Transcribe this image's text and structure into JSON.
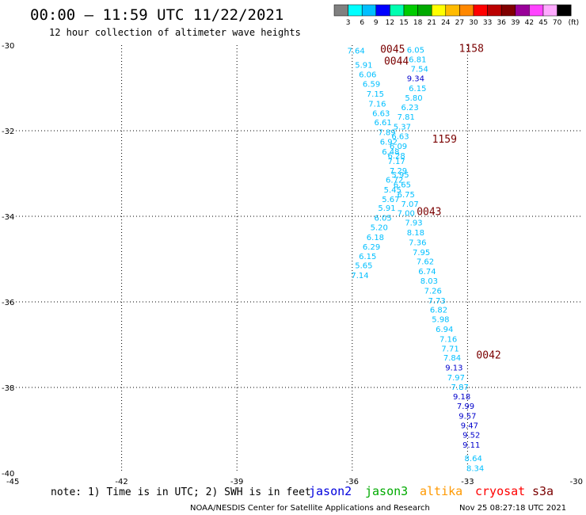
{
  "header": {
    "title": "00:00 – 11:59 UTC 11/22/2021",
    "subtitle": "12 hour collection of altimeter wave heights"
  },
  "colorbar": {
    "labels": [
      "3",
      "6",
      "9",
      "12",
      "15",
      "18",
      "21",
      "24",
      "27",
      "30",
      "33",
      "36",
      "39",
      "42",
      "45",
      "70"
    ],
    "unit": "(ft)",
    "colors": [
      "#808080",
      "#00ffff",
      "#00bfff",
      "#0000ff",
      "#00ffb0",
      "#00cc00",
      "#00aa00",
      "#ffff00",
      "#ffbb00",
      "#ff8800",
      "#ff0000",
      "#bb0000",
      "#800000",
      "#990099",
      "#ff44ff",
      "#ffaaff",
      "#000000"
    ]
  },
  "note": "note: 1) Time is in UTC; 2) SWH is in feet",
  "legend": [
    {
      "name": "jason2",
      "color": "#0000dd"
    },
    {
      "name": "jason3",
      "color": "#00aa00"
    },
    {
      "name": "altika",
      "color": "#ff9900"
    },
    {
      "name": "cryosat",
      "color": "#ff0000"
    },
    {
      "name": "s3a",
      "color": "#7a0000"
    }
  ],
  "credit": "NOAA/NESDIS Center for Satellite Applications and Research",
  "timestamp": "Nov 25 08:27:18 UTC 2021",
  "chart_data": {
    "type": "scatter",
    "xlim": [
      -45,
      -30
    ],
    "ylim": [
      -40,
      -30
    ],
    "xticks": [
      -45,
      -42,
      -39,
      -36,
      -33,
      -30
    ],
    "yticks": [
      -30,
      -32,
      -34,
      -36,
      -38,
      -40
    ],
    "xtick_labels": [
      "-45",
      "-42",
      "-39",
      "-36",
      "-33",
      "-30"
    ],
    "ytick_labels": [
      "-30",
      "-32",
      "-34",
      "-36",
      "-38",
      "-40"
    ],
    "grid": true,
    "series": [
      {
        "color": "#00bfff",
        "points": [
          {
            "x": -35.9,
            "y": -30.12,
            "label": "7.64"
          },
          {
            "x": -35.7,
            "y": -30.45,
            "label": "5.91"
          },
          {
            "x": -35.6,
            "y": -30.68,
            "label": "6.06"
          },
          {
            "x": -35.5,
            "y": -30.9,
            "label": "6.59"
          },
          {
            "x": -35.4,
            "y": -31.13,
            "label": "7.15"
          },
          {
            "x": -35.35,
            "y": -31.36,
            "label": "7.16"
          },
          {
            "x": -35.25,
            "y": -31.58,
            "label": "6.63"
          },
          {
            "x": -35.2,
            "y": -31.8,
            "label": "6.61"
          },
          {
            "x": -35.1,
            "y": -32.03,
            "label": "7.89"
          },
          {
            "x": -35.05,
            "y": -32.25,
            "label": "6.92"
          },
          {
            "x": -35.0,
            "y": -32.48,
            "label": "6.48"
          },
          {
            "x": -34.85,
            "y": -32.7,
            "label": "7.17"
          },
          {
            "x": -34.8,
            "y": -32.93,
            "label": "7.29"
          },
          {
            "x": -34.9,
            "y": -33.14,
            "label": "6.72"
          },
          {
            "x": -34.95,
            "y": -33.37,
            "label": "5.45"
          },
          {
            "x": -35.0,
            "y": -33.59,
            "label": "5.67"
          },
          {
            "x": -35.1,
            "y": -33.8,
            "label": "5.91"
          },
          {
            "x": -35.2,
            "y": -34.03,
            "label": "6.05"
          },
          {
            "x": -35.3,
            "y": -34.25,
            "label": "5.20"
          },
          {
            "x": -35.4,
            "y": -34.48,
            "label": "6.18"
          },
          {
            "x": -35.5,
            "y": -34.7,
            "label": "6.29"
          },
          {
            "x": -35.6,
            "y": -34.93,
            "label": "6.15"
          },
          {
            "x": -35.7,
            "y": -35.14,
            "label": "5.65"
          },
          {
            "x": -35.8,
            "y": -35.37,
            "label": "7.14"
          },
          {
            "x": -34.35,
            "y": -30.1,
            "label": "6.05"
          },
          {
            "x": -34.3,
            "y": -30.32,
            "label": "6.81"
          },
          {
            "x": -34.25,
            "y": -30.55,
            "label": "7.54"
          },
          {
            "x": -34.3,
            "y": -31.0,
            "label": "6.15"
          },
          {
            "x": -34.4,
            "y": -31.22,
            "label": "5.80"
          },
          {
            "x": -34.5,
            "y": -31.44,
            "label": "6.23"
          },
          {
            "x": -34.6,
            "y": -31.67,
            "label": "7.81"
          },
          {
            "x": -34.7,
            "y": -31.9,
            "label": "5.37"
          },
          {
            "x": -34.75,
            "y": -32.12,
            "label": "6.63"
          },
          {
            "x": -34.8,
            "y": -32.35,
            "label": "6.09"
          },
          {
            "x": -34.85,
            "y": -32.57,
            "label": "6.28"
          },
          {
            "x": -34.75,
            "y": -33.02,
            "label": "5.95"
          },
          {
            "x": -34.7,
            "y": -33.25,
            "label": "6.65"
          },
          {
            "x": -34.6,
            "y": -33.48,
            "label": "6.75"
          },
          {
            "x": -34.5,
            "y": -33.7,
            "label": "7.07"
          },
          {
            "x": -34.6,
            "y": -33.92,
            "label": "7.00"
          },
          {
            "x": -34.4,
            "y": -34.14,
            "label": "7.93"
          },
          {
            "x": -34.35,
            "y": -34.37,
            "label": "8.18"
          },
          {
            "x": -34.3,
            "y": -34.6,
            "label": "7.36"
          },
          {
            "x": -34.2,
            "y": -34.83,
            "label": "7.95"
          },
          {
            "x": -34.1,
            "y": -35.05,
            "label": "7.62"
          },
          {
            "x": -34.05,
            "y": -35.28,
            "label": "6.74"
          },
          {
            "x": -34.0,
            "y": -35.5,
            "label": "8.03"
          },
          {
            "x": -33.9,
            "y": -35.73,
            "label": "7.26"
          },
          {
            "x": -33.8,
            "y": -35.96,
            "label": "7.73"
          },
          {
            "x": -33.75,
            "y": -36.18,
            "label": "6.82"
          },
          {
            "x": -33.7,
            "y": -36.4,
            "label": "5.98"
          },
          {
            "x": -33.6,
            "y": -36.63,
            "label": "6.94"
          },
          {
            "x": -33.5,
            "y": -36.86,
            "label": "7.16"
          },
          {
            "x": -33.45,
            "y": -37.08,
            "label": "7.71"
          },
          {
            "x": -33.4,
            "y": -37.3,
            "label": "7.84"
          },
          {
            "x": -33.3,
            "y": -37.76,
            "label": "7.97"
          },
          {
            "x": -33.2,
            "y": -37.98,
            "label": "7.87"
          },
          {
            "x": -32.85,
            "y": -39.65,
            "label": "8.64"
          },
          {
            "x": -32.8,
            "y": -39.88,
            "label": "8.34"
          }
        ]
      },
      {
        "color": "#0000cc",
        "points": [
          {
            "x": -34.35,
            "y": -30.77,
            "label": "9.34"
          },
          {
            "x": -33.35,
            "y": -37.53,
            "label": "9.13"
          },
          {
            "x": -33.15,
            "y": -38.2,
            "label": "9.18"
          },
          {
            "x": -33.05,
            "y": -38.43,
            "label": "7.99"
          },
          {
            "x": -33.0,
            "y": -38.66,
            "label": "9.57"
          },
          {
            "x": -32.95,
            "y": -38.88,
            "label": "9.47"
          },
          {
            "x": -32.9,
            "y": -39.1,
            "label": "9.52"
          },
          {
            "x": -32.9,
            "y": -39.33,
            "label": "9.11"
          }
        ]
      }
    ],
    "time_labels": [
      {
        "x": -34.95,
        "y": -30.1,
        "label": "0045"
      },
      {
        "x": -34.85,
        "y": -30.38,
        "label": "0044"
      },
      {
        "x": -32.9,
        "y": -30.08,
        "label": "1158"
      },
      {
        "x": -33.6,
        "y": -32.2,
        "label": "1159"
      },
      {
        "x": -34.0,
        "y": -33.9,
        "label": "0043"
      },
      {
        "x": -32.45,
        "y": -37.25,
        "label": "0042"
      }
    ]
  }
}
